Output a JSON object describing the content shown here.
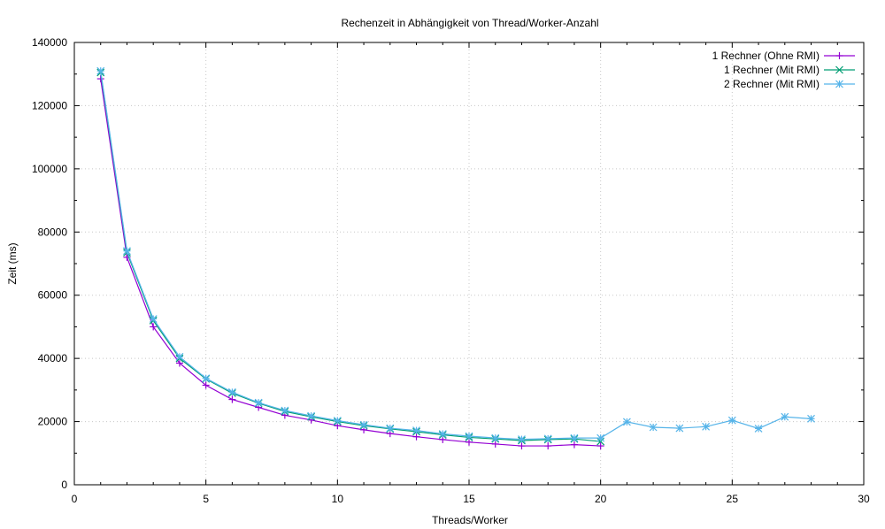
{
  "chart_data": {
    "type": "line",
    "title": "Rechenzeit in Abhängigkeit von Thread/Worker-Anzahl",
    "xlabel": "Threads/Worker",
    "ylabel": "Zeit (ms)",
    "xlim": [
      0,
      30
    ],
    "ylim": [
      0,
      140000
    ],
    "x_ticks": [
      0,
      5,
      10,
      15,
      20,
      25,
      30
    ],
    "y_ticks": [
      0,
      20000,
      40000,
      60000,
      80000,
      100000,
      120000,
      140000
    ],
    "grid": true,
    "legend_position": "top-right",
    "series": [
      {
        "name": "1 Rechner (Ohne RMI)",
        "color": "#9400d3",
        "marker": "plus",
        "x": [
          1,
          2,
          3,
          4,
          5,
          6,
          7,
          8,
          9,
          10,
          11,
          12,
          13,
          14,
          15,
          16,
          17,
          18,
          19,
          20
        ],
        "y": [
          128500,
          72000,
          50000,
          38500,
          31500,
          27000,
          24500,
          22000,
          20500,
          18700,
          17400,
          16200,
          15200,
          14300,
          13500,
          12900,
          12300,
          12300,
          12700,
          12300
        ]
      },
      {
        "name": "1 Rechner (Mit RMI)",
        "color": "#009e73",
        "marker": "cross",
        "x": [
          1,
          2,
          3,
          4,
          5,
          6,
          7,
          8,
          9,
          10,
          11,
          12,
          13,
          14,
          15,
          16,
          17,
          18,
          19,
          20
        ],
        "y": [
          130500,
          73500,
          52000,
          40000,
          33500,
          29000,
          25800,
          23200,
          21500,
          20000,
          18700,
          17700,
          16800,
          15800,
          15000,
          14500,
          14000,
          14300,
          14500,
          13700
        ]
      },
      {
        "name": "2 Rechner (Mit RMI)",
        "color": "#56b4e9",
        "marker": "star",
        "x": [
          1,
          2,
          3,
          4,
          5,
          6,
          7,
          8,
          9,
          10,
          11,
          12,
          13,
          14,
          15,
          16,
          17,
          18,
          19,
          20,
          21,
          22,
          23,
          24,
          25,
          26,
          27,
          28
        ],
        "y": [
          131000,
          74000,
          52500,
          40500,
          33700,
          29300,
          26000,
          23500,
          21800,
          20300,
          19000,
          17900,
          17200,
          16100,
          15400,
          14800,
          14400,
          14600,
          14800,
          14800,
          19900,
          18200,
          17900,
          18400,
          20400,
          17800,
          21500,
          20900
        ]
      }
    ]
  }
}
